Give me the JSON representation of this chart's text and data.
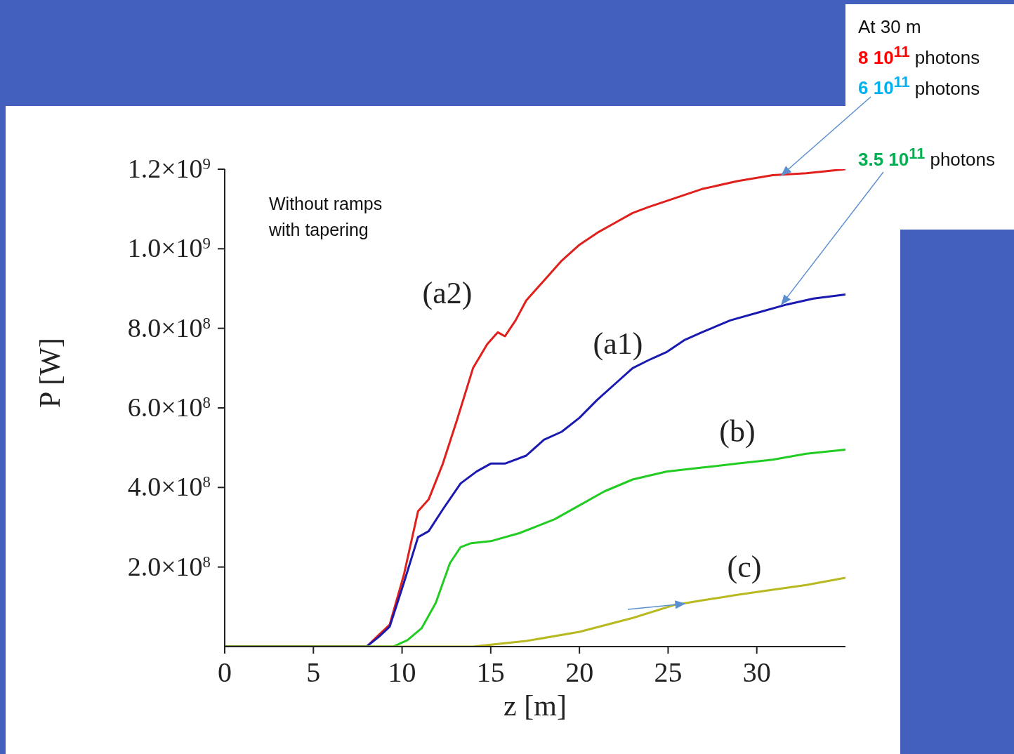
{
  "chart_data": {
    "type": "line",
    "xlabel": "z [m]",
    "ylabel": "P [W]",
    "xlim": [
      0,
      35
    ],
    "xticks": [
      0,
      5,
      10,
      15,
      20,
      25,
      30
    ],
    "ylim": [
      0,
      1200000000
    ],
    "yticks": [
      {
        "value": 200000000,
        "label": "2.0×10$^{8}$"
      },
      {
        "value": 400000000,
        "label": "4.0×10$^{8}$"
      },
      {
        "value": 600000000,
        "label": "6.0×10$^{8}$"
      },
      {
        "value": 800000000,
        "label": "8.0×10$^{8}$"
      },
      {
        "value": 1000000000,
        "label": "1.0×10$^{9}$"
      },
      {
        "value": 1200000000,
        "label": "1.2×10$^{9}$"
      }
    ],
    "marker": "none",
    "line_style": "solid",
    "series": [
      {
        "color": "#e0201c",
        "x": [
          0,
          8,
          8.7,
          9.3,
          10.1,
          10.9,
          11.5,
          12.3,
          13.1,
          14,
          14.8,
          15.4,
          15.8,
          16.4,
          17,
          18,
          19,
          20,
          21,
          22,
          23,
          23.9,
          24.9,
          26.9,
          28.9,
          30.9,
          32.8,
          35
        ],
        "values": [
          0,
          0,
          30000000,
          55000000,
          180000000,
          340000000,
          370000000,
          460000000,
          570000000,
          700000000,
          760000000,
          790000000,
          780000000,
          820000000,
          870000000,
          920000000,
          970000000,
          1010000000,
          1040000000,
          1065000000,
          1090000000,
          1105000000,
          1120000000,
          1150000000,
          1170000000,
          1185000000,
          1190000000,
          1200000000
        ]
      },
      {
        "color": "#1a1ab0",
        "x": [
          0,
          8,
          8.7,
          9.3,
          10.1,
          10.9,
          11.5,
          12.3,
          13.3,
          14.2,
          15,
          15.8,
          17,
          18,
          19,
          20,
          21,
          22,
          23,
          23.9,
          24.9,
          25.9,
          26.9,
          28.5,
          30.1,
          31.7,
          33.2,
          35
        ],
        "values": [
          0,
          0,
          25000000,
          50000000,
          160000000,
          275000000,
          290000000,
          345000000,
          410000000,
          440000000,
          460000000,
          460000000,
          480000000,
          520000000,
          540000000,
          575000000,
          620000000,
          660000000,
          700000000,
          720000000,
          740000000,
          770000000,
          790000000,
          820000000,
          840000000,
          860000000,
          875000000,
          885000000
        ]
      },
      {
        "color": "#22cc22",
        "x": [
          0,
          9.5,
          10.3,
          11.1,
          11.9,
          12.7,
          13.3,
          13.9,
          15,
          16.6,
          18.6,
          20,
          21.4,
          23,
          24.9,
          26.9,
          28.9,
          30.9,
          32.8,
          35
        ],
        "values": [
          0,
          0,
          16000000,
          46000000,
          110000000,
          210000000,
          250000000,
          260000000,
          265000000,
          285000000,
          320000000,
          355000000,
          390000000,
          420000000,
          440000000,
          450000000,
          460000000,
          470000000,
          485000000,
          495000000
        ]
      },
      {
        "color": "#b8b820",
        "x": [
          0,
          14,
          17,
          20,
          23,
          25.3,
          26.9,
          28.9,
          30.9,
          32.8,
          35
        ],
        "values": [
          0,
          0,
          14000000,
          37000000,
          72000000,
          104000000,
          116000000,
          130000000,
          143000000,
          155000000,
          173000000
        ]
      }
    ],
    "annotations": [
      "Without ramps with tapering",
      "At 30 m",
      "8 10$^{11}$ photons",
      {
        "text": "6 10$^{11}$ photons",
        "x": 31.4,
        "y": 1185000000
      },
      {
        "text": "3.5 10$^{11}$ photons",
        "x": 31.4,
        "y": 860000000
      },
      "(a2)",
      "(a1)",
      "(b)",
      "(c)"
    ]
  }
}
